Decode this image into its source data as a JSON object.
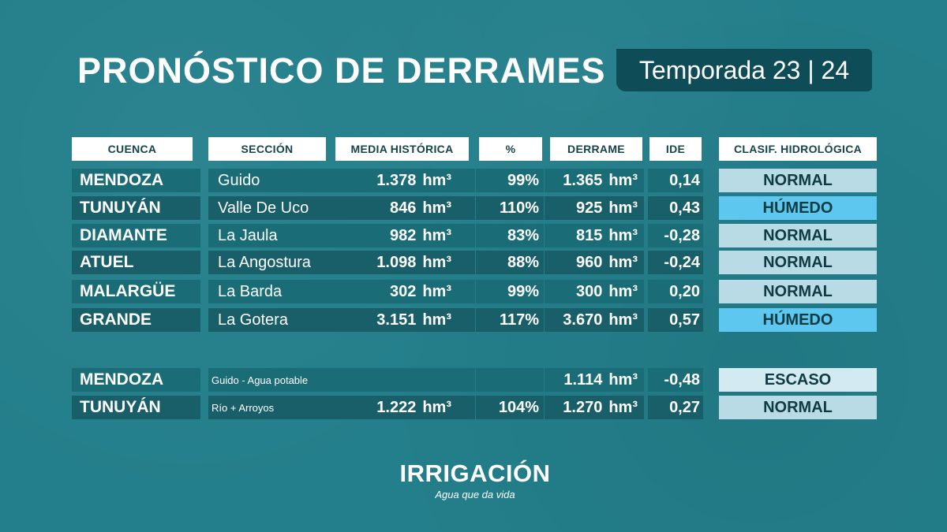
{
  "title": "PRONÓSTICO DE DERRAMES",
  "season": "Temporada 23 | 24",
  "headers": [
    "CUENCA",
    "SECCIÓN",
    "MEDIA HISTÓRICA",
    "%",
    "DERRAME",
    "IDE",
    "CLASIF. HIDROLÓGICA"
  ],
  "unit": "hm³",
  "rows": [
    {
      "cuenca": "MENDOZA",
      "seccion": "Guido",
      "media": "1.378",
      "pct": "99%",
      "derrame": "1.365",
      "ide": "0,14",
      "clasif": "NORMAL"
    },
    {
      "cuenca": "TUNUYÁN",
      "seccion": "Valle De Uco",
      "media": "846",
      "pct": "110%",
      "derrame": "925",
      "ide": "0,43",
      "clasif": "HÚMEDO"
    },
    {
      "cuenca": "DIAMANTE",
      "seccion": "La Jaula",
      "media": "982",
      "pct": "83%",
      "derrame": "815",
      "ide": "-0,28",
      "clasif": "NORMAL"
    },
    {
      "cuenca": "ATUEL",
      "seccion": "La Angostura",
      "media": "1.098",
      "pct": "88%",
      "derrame": "960",
      "ide": "-0,24",
      "clasif": "NORMAL"
    },
    {
      "cuenca": "MALARGÜE",
      "seccion": "La Barda",
      "media": "302",
      "pct": "99%",
      "derrame": "300",
      "ide": "0,20",
      "clasif": "NORMAL"
    },
    {
      "cuenca": "GRANDE",
      "seccion": "La Gotera",
      "media": "3.151",
      "pct": "117%",
      "derrame": "3.670",
      "ide": "0,57",
      "clasif": "HÚMEDO"
    }
  ],
  "rows2": [
    {
      "cuenca": "MENDOZA",
      "seccion": "Guido - Agua potable",
      "media": "",
      "pct": "",
      "derrame": "1.114",
      "ide": "-0,48",
      "clasif": "ESCASO"
    },
    {
      "cuenca": "TUNUYÁN",
      "seccion": "Río + Arroyos",
      "media": "1.222",
      "pct": "104%",
      "derrame": "1.270",
      "ide": "0,27",
      "clasif": "NORMAL"
    }
  ],
  "colors": {
    "normal": "#b9dbe5",
    "humedo": "#5ec7ef",
    "escaso": "#d3eaf0",
    "background": "#237f8b"
  },
  "logo": {
    "name": "IRRIGACIÓN",
    "tagline": "Agua que da vida"
  }
}
